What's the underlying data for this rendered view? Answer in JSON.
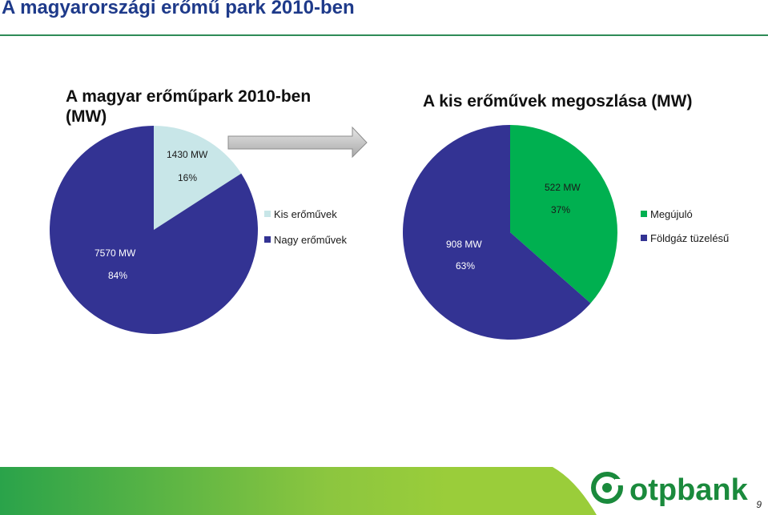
{
  "slide": {
    "title": "A magyarországi erőmű park 2010-ben",
    "page_number": "9"
  },
  "brand": {
    "name": "otpbank",
    "colors": {
      "green": "#1a8a3c",
      "blue": "#1e3a8a",
      "accent_green": "#8cc63f"
    }
  },
  "decor": {
    "arrow_icon": "right-arrow-icon"
  },
  "chart_data": [
    {
      "type": "pie",
      "title": "A magyar erőműpark 2010-ben (MW)",
      "title_lines": [
        "A magyar erőműpark 2010-ben",
        "(MW)"
      ],
      "slices": [
        {
          "name": "Kis erőművek",
          "value": 1430,
          "value_label": "1430 MW",
          "percent": 16,
          "percent_label": "16%",
          "color": "#c8e6e8"
        },
        {
          "name": "Nagy erőművek",
          "value": 7570,
          "value_label": "7570 MW",
          "percent": 84,
          "percent_label": "84%",
          "color": "#333393"
        }
      ],
      "legend": {
        "placement": "right",
        "entries": [
          "Kis erőművek",
          "Nagy erőművek"
        ]
      }
    },
    {
      "type": "pie",
      "title": "A kis erőművek megoszlása (MW)",
      "title_lines": [
        "A kis erőművek megoszlása (MW)"
      ],
      "slices": [
        {
          "name": "Megújuló",
          "value": 522,
          "value_label": "522 MW",
          "percent": 37,
          "percent_label": "37%",
          "color": "#00b050"
        },
        {
          "name": "Földgáz tüzelésű",
          "value": 908,
          "value_label": "908 MW",
          "percent": 63,
          "percent_label": "63%",
          "color": "#333393"
        }
      ],
      "legend": {
        "placement": "right",
        "entries": [
          "Megújuló",
          "Földgáz tüzelésű"
        ]
      }
    }
  ]
}
